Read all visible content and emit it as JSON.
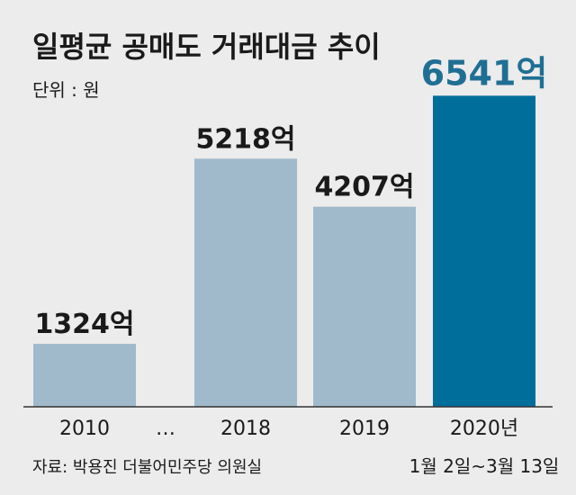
{
  "chart_data": {
    "type": "bar",
    "title": "일평균 공매도 거래대금 추이",
    "unit_label": "단위 : 원",
    "categories": [
      "2010",
      "2018",
      "2019",
      "2020년"
    ],
    "category_sublabels": [
      "",
      "",
      "",
      "1월 2일~3월 13일"
    ],
    "values": [
      1324,
      5218,
      4207,
      6541
    ],
    "value_labels": [
      "1324억",
      "5218억",
      "4207억",
      "6541억"
    ],
    "ellipsis": "…",
    "ylim": [
      0,
      7000
    ],
    "grid": false,
    "legend": "none",
    "colors": {
      "bar": "#a0bacb",
      "highlight_bar": "#006e9b",
      "highlight_label": "#1f6f94",
      "text": "#1a1a1a",
      "baseline": "#333333",
      "background": "#ececec"
    },
    "highlight_index": 3
  },
  "source": "자료: 박용진 더불어민주당 의원실"
}
